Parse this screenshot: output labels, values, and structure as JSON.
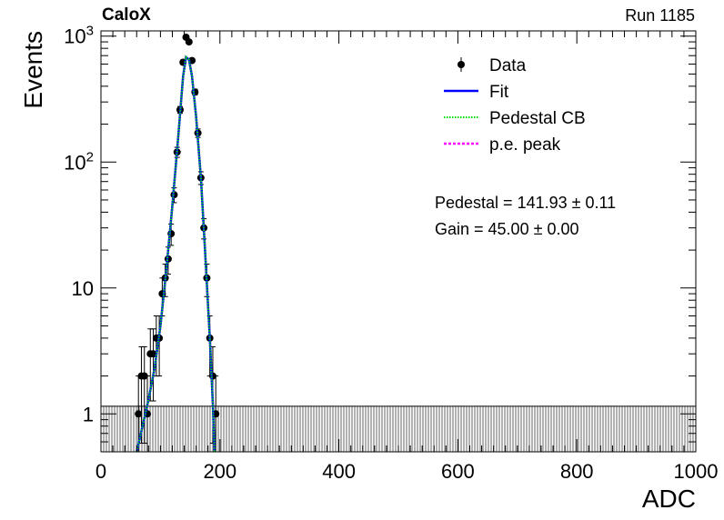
{
  "header": {
    "experiment": "CaloX",
    "run": "Run 1185"
  },
  "stats": {
    "pedestal": "Pedestal = 141.93 ± 0.11",
    "gain": "Gain = 45.00 ± 0.00"
  },
  "colors": {
    "data": "#000000",
    "fit": "#0000ff",
    "pedestal_cb": "#00dd00",
    "pe_peak": "#ff00ff"
  },
  "chart_data": {
    "type": "scatter",
    "xlabel": "ADC",
    "ylabel": "Events",
    "xlim": [
      0,
      1000
    ],
    "ylim": [
      0.5,
      1100
    ],
    "y_scale": "log",
    "x_ticks": [
      0,
      200,
      400,
      600,
      800,
      1000
    ],
    "y_ticks": [
      {
        "value": 1,
        "label": "1"
      },
      {
        "value": 10,
        "label": "10"
      },
      {
        "value": 100,
        "label": "10^2"
      },
      {
        "value": 1000,
        "label": "10^3"
      }
    ],
    "legend_position": "top-right",
    "legend": [
      "Data",
      "Fit",
      "Pedestal CB",
      "p.e. peak"
    ],
    "series": [
      {
        "name": "Data",
        "kind": "points",
        "points": [
          {
            "x": 63,
            "y": 1
          },
          {
            "x": 68,
            "y": 2
          },
          {
            "x": 73,
            "y": 2
          },
          {
            "x": 78,
            "y": 1
          },
          {
            "x": 83,
            "y": 3
          },
          {
            "x": 88,
            "y": 3
          },
          {
            "x": 93,
            "y": 4
          },
          {
            "x": 98,
            "y": 4
          },
          {
            "x": 103,
            "y": 9
          },
          {
            "x": 108,
            "y": 12
          },
          {
            "x": 113,
            "y": 17
          },
          {
            "x": 118,
            "y": 27
          },
          {
            "x": 123,
            "y": 55
          },
          {
            "x": 128,
            "y": 120
          },
          {
            "x": 133,
            "y": 260
          },
          {
            "x": 138,
            "y": 620
          },
          {
            "x": 143,
            "y": 980
          },
          {
            "x": 148,
            "y": 900
          },
          {
            "x": 153,
            "y": 640
          },
          {
            "x": 158,
            "y": 360
          },
          {
            "x": 163,
            "y": 170
          },
          {
            "x": 168,
            "y": 75
          },
          {
            "x": 173,
            "y": 30
          },
          {
            "x": 178,
            "y": 12
          },
          {
            "x": 183,
            "y": 4
          },
          {
            "x": 188,
            "y": 2
          },
          {
            "x": 193,
            "y": 1
          }
        ]
      },
      {
        "name": "Fit",
        "kind": "line",
        "points": [
          {
            "x": 60,
            "y": 0.5
          },
          {
            "x": 70,
            "y": 0.8
          },
          {
            "x": 80,
            "y": 1.3
          },
          {
            "x": 90,
            "y": 2.3
          },
          {
            "x": 100,
            "y": 5
          },
          {
            "x": 110,
            "y": 14
          },
          {
            "x": 120,
            "y": 45
          },
          {
            "x": 130,
            "y": 160
          },
          {
            "x": 138,
            "y": 480
          },
          {
            "x": 143,
            "y": 680
          },
          {
            "x": 148,
            "y": 650
          },
          {
            "x": 153,
            "y": 480
          },
          {
            "x": 160,
            "y": 230
          },
          {
            "x": 168,
            "y": 75
          },
          {
            "x": 175,
            "y": 20
          },
          {
            "x": 183,
            "y": 4
          },
          {
            "x": 188,
            "y": 1.2
          },
          {
            "x": 191,
            "y": 0.5
          }
        ]
      },
      {
        "name": "Pedestal CB",
        "kind": "line",
        "points": [
          {
            "x": 60,
            "y": 0.5
          },
          {
            "x": 70,
            "y": 0.8
          },
          {
            "x": 80,
            "y": 1.3
          },
          {
            "x": 90,
            "y": 2.3
          },
          {
            "x": 100,
            "y": 5
          },
          {
            "x": 110,
            "y": 14
          },
          {
            "x": 120,
            "y": 45
          },
          {
            "x": 130,
            "y": 160
          },
          {
            "x": 138,
            "y": 480
          },
          {
            "x": 143,
            "y": 680
          },
          {
            "x": 148,
            "y": 650
          },
          {
            "x": 153,
            "y": 480
          },
          {
            "x": 160,
            "y": 230
          },
          {
            "x": 168,
            "y": 75
          },
          {
            "x": 175,
            "y": 20
          },
          {
            "x": 183,
            "y": 4
          },
          {
            "x": 188,
            "y": 1.2
          },
          {
            "x": 191,
            "y": 0.5
          }
        ]
      },
      {
        "name": "p.e. peak",
        "kind": "line",
        "points": []
      }
    ],
    "empty_bins_region": {
      "x_from": 0,
      "x_to": 1000,
      "y_upper": 1.15
    }
  }
}
